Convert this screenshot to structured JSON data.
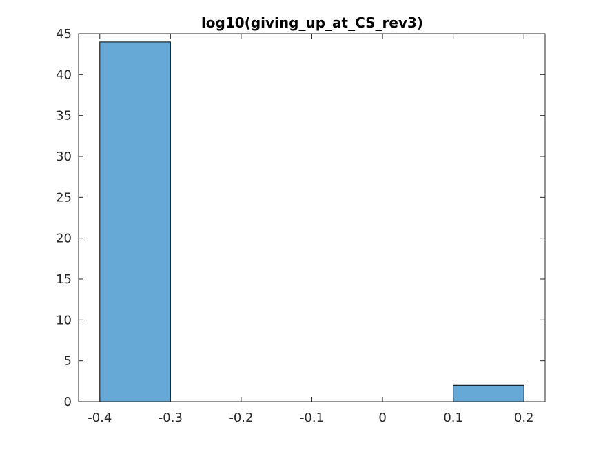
{
  "chart_data": {
    "type": "bar",
    "title": "log10(giving_up_at_CS_rev3)",
    "xlabel": "",
    "ylabel": "",
    "xlim": [
      -0.43,
      0.23
    ],
    "ylim": [
      0,
      45
    ],
    "xticks": [
      -0.4,
      -0.3,
      -0.2,
      -0.1,
      0,
      0.1,
      0.2
    ],
    "xtick_labels": [
      "-0.4",
      "-0.3",
      "-0.2",
      "-0.1",
      "0",
      "0.1",
      "0.2"
    ],
    "yticks": [
      0,
      5,
      10,
      15,
      20,
      25,
      30,
      35,
      40,
      45
    ],
    "ytick_labels": [
      "0",
      "5",
      "10",
      "15",
      "20",
      "25",
      "30",
      "35",
      "40",
      "45"
    ],
    "bin_edges": [
      -0.4,
      -0.3,
      -0.2,
      -0.1,
      0,
      0.1,
      0.2
    ],
    "counts": [
      44,
      0,
      0,
      0,
      0,
      2
    ],
    "grid": false,
    "bar_color": "#66a9d6",
    "edge_color": "#000000"
  }
}
